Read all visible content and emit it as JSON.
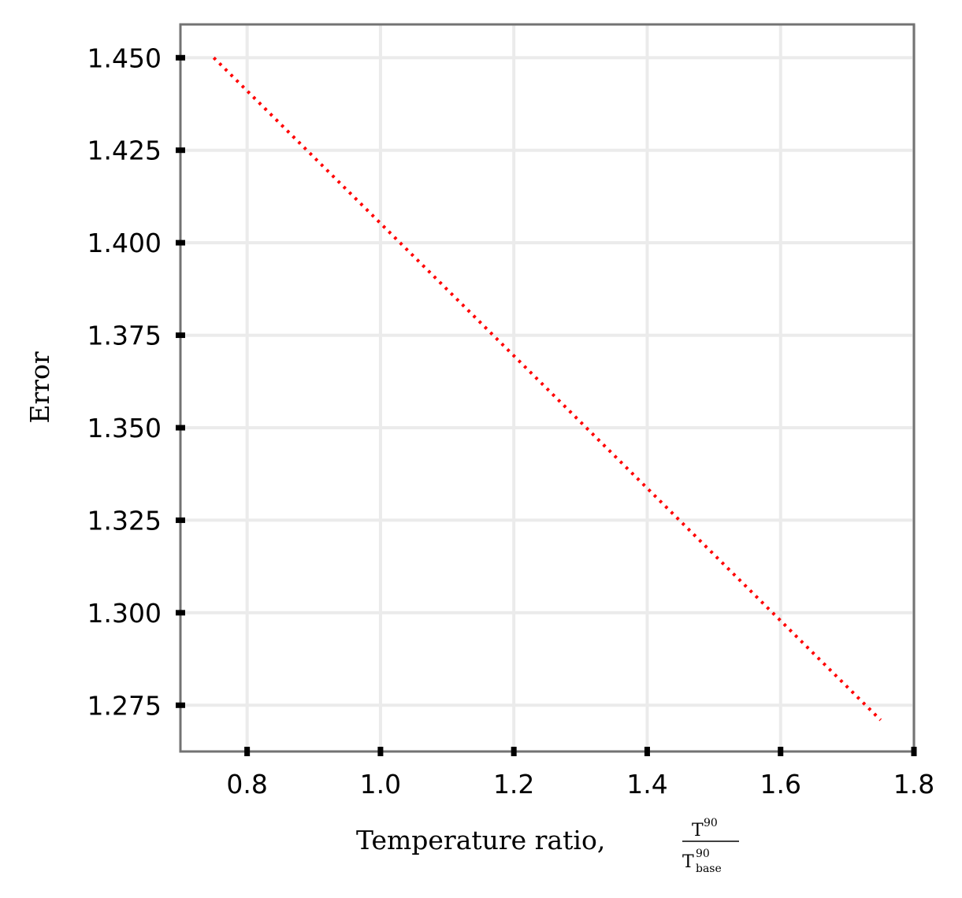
{
  "chart_data": {
    "type": "line",
    "title": "",
    "xlabel": "Temperature ratio, ",
    "xlabel_fraction": {
      "numerator": "T",
      "numerator_sup": "90",
      "denominator": "T",
      "denominator_sup": "90",
      "denominator_sub": "base"
    },
    "ylabel": "Error",
    "xlim": [
      0.7,
      1.8
    ],
    "ylim": [
      1.2625,
      1.459
    ],
    "x_ticks": [
      0.8,
      1.0,
      1.2,
      1.4,
      1.6,
      1.8
    ],
    "x_tick_labels": [
      "0.8",
      "1.0",
      "1.2",
      "1.4",
      "1.6",
      "1.8"
    ],
    "y_ticks": [
      1.275,
      1.3,
      1.325,
      1.35,
      1.375,
      1.4,
      1.425,
      1.45
    ],
    "y_tick_labels": [
      "1.275",
      "1.300",
      "1.325",
      "1.350",
      "1.375",
      "1.400",
      "1.425",
      "1.450"
    ],
    "grid": true,
    "series": [
      {
        "x": [
          0.75,
          1.75
        ],
        "y": [
          1.45,
          1.271
        ],
        "color": "#ff0000",
        "line_style": "dotted"
      }
    ],
    "colors": {
      "grid": "#ebebeb",
      "frame": "#737373",
      "ticks": "#000000"
    }
  }
}
